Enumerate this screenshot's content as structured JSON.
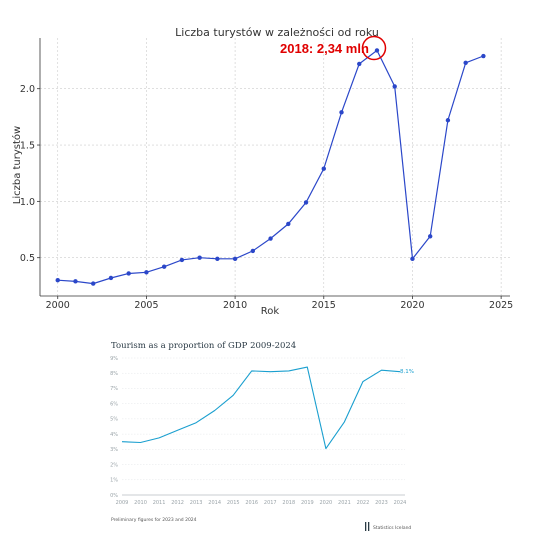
{
  "chart_data": [
    {
      "type": "line",
      "title": "Liczba turystów w zależności od roku",
      "xlabel": "Rok",
      "ylabel": "Liczba turystów",
      "xlim": [
        1999,
        2025.5
      ],
      "ylim": [
        0.16,
        2.45
      ],
      "xticks": [
        "2000",
        "2005",
        "2010",
        "2015",
        "2020",
        "2025"
      ],
      "yticks": [
        "0.5",
        "1.0",
        "1.5",
        "2.0"
      ],
      "grid": true,
      "line_color": "#2b47c9",
      "annotation": {
        "text": "2018: 2,34 mln",
        "color": "#e00000",
        "x": 2018,
        "y": 2.34
      },
      "x": [
        2000,
        2001,
        2002,
        2003,
        2004,
        2005,
        2006,
        2007,
        2008,
        2009,
        2010,
        2011,
        2012,
        2013,
        2014,
        2015,
        2016,
        2017,
        2018,
        2019,
        2020,
        2021,
        2022,
        2023,
        2024
      ],
      "values": [
        0.3,
        0.29,
        0.27,
        0.32,
        0.36,
        0.37,
        0.42,
        0.48,
        0.5,
        0.49,
        0.49,
        0.56,
        0.67,
        0.8,
        0.99,
        1.29,
        1.79,
        2.22,
        2.34,
        2.02,
        0.49,
        0.69,
        1.72,
        2.23,
        2.29
      ]
    },
    {
      "type": "line",
      "title": "Tourism as a proportion of GDP 2009-2024",
      "xticks": [
        "2009",
        "2010",
        "2011",
        "2012",
        "2013",
        "2014",
        "2015",
        "2016",
        "2017",
        "2018",
        "2019",
        "2020",
        "2021",
        "2022",
        "2023",
        "2024"
      ],
      "yticks": [
        "0%",
        "1%",
        "2%",
        "3%",
        "4%",
        "5%",
        "6%",
        "7%",
        "8%",
        "9%"
      ],
      "ylim": [
        0,
        9
      ],
      "line_color": "#1a9fcf",
      "end_label": "8.1%",
      "footnote": "Preliminary figures for 2023 and 2024",
      "source": "Statistics Iceland",
      "x": [
        2009,
        2010,
        2011,
        2012,
        2013,
        2014,
        2015,
        2016,
        2017,
        2018,
        2019,
        2020,
        2021,
        2022,
        2023,
        2024
      ],
      "values": [
        3.5,
        3.45,
        3.75,
        4.25,
        4.75,
        5.55,
        6.55,
        8.15,
        8.1,
        8.15,
        8.4,
        3.05,
        4.8,
        7.45,
        8.2,
        8.1
      ]
    }
  ]
}
